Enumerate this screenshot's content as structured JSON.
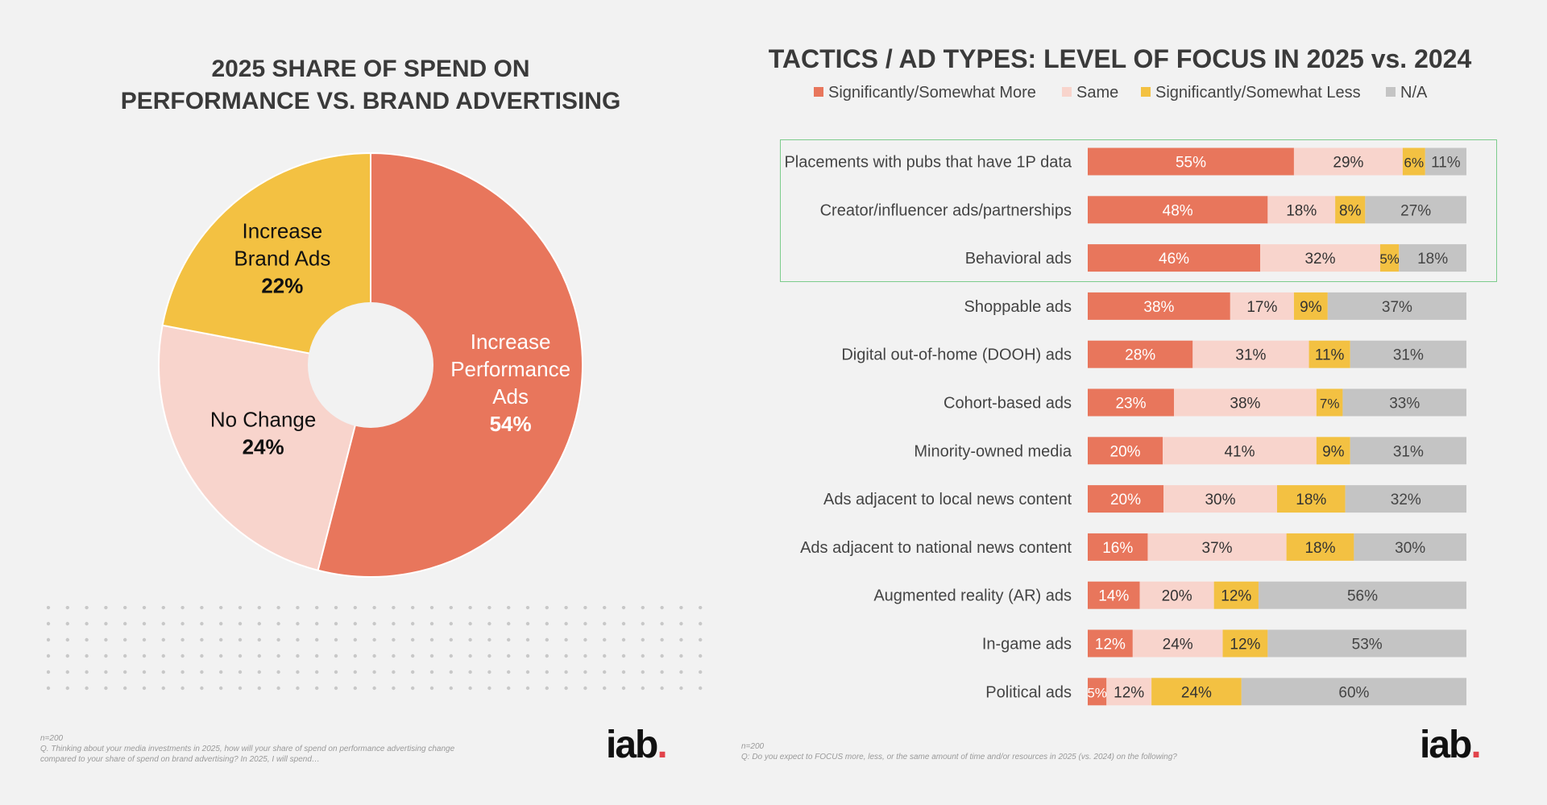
{
  "colors": {
    "more": "#e8765c",
    "same": "#f8d4cc",
    "less": "#f3c142",
    "na": "#c4c4c4",
    "pie_performance": "#e8765c",
    "pie_no_change": "#f8d4cc",
    "pie_brand": "#f3c142",
    "highlight": "#7dcc8c"
  },
  "left": {
    "title_line1": "2025 SHARE OF SPEND ON",
    "title_line2": "PERFORMANCE VS. BRAND ADVERTISING",
    "footnote_n": "n=200",
    "footnote_q": "Q. Thinking about your media investments in 2025, how will your share of spend on performance advertising change compared to your share of spend on brand advertising? In 2025, I will spend…",
    "logo": "iab",
    "logo_dot": "."
  },
  "right": {
    "title": "TACTICS / AD TYPES: LEVEL OF FOCUS IN 2025 vs. 2024",
    "footnote_n": "n=200",
    "footnote_q": "Q: Do you expect to FOCUS more, less, or the same amount of time and/or resources in 2025 (vs. 2024) on the following?",
    "logo": "iab",
    "logo_dot": "."
  },
  "chart_data": [
    {
      "type": "pie",
      "title": "2025 SHARE OF SPEND ON PERFORMANCE VS. BRAND ADVERTISING",
      "slices": [
        {
          "label_lines": [
            "Increase",
            "Performance",
            "Ads"
          ],
          "value": 54,
          "value_label": "54%",
          "color": "#e8765c",
          "text_color": "#ffffff"
        },
        {
          "label_lines": [
            "No Change"
          ],
          "value": 24,
          "value_label": "24%",
          "color": "#f8d4cc",
          "text_color": "#111111"
        },
        {
          "label_lines": [
            "Increase",
            "Brand Ads"
          ],
          "value": 22,
          "value_label": "22%",
          "color": "#f3c142",
          "text_color": "#111111"
        }
      ]
    },
    {
      "type": "bar",
      "orientation": "horizontal",
      "stacked": true,
      "title": "TACTICS / AD TYPES: LEVEL OF FOCUS IN 2025 vs. 2024",
      "legend": [
        "Significantly/Somewhat More",
        "Same",
        "Significantly/Somewhat Less",
        "N/A"
      ],
      "legend_position": "top",
      "highlighted_categories": [
        "Placements with pubs that have 1P data",
        "Creator/influencer ads/partnerships",
        "Behavioral ads"
      ],
      "categories": [
        "Placements with pubs that have 1P data",
        "Creator/influencer ads/partnerships",
        "Behavioral ads",
        "Shoppable ads",
        "Digital out-of-home (DOOH) ads",
        "Cohort-based ads",
        "Minority-owned media",
        "Ads adjacent to local news content",
        "Ads adjacent to national news content",
        "Augmented reality (AR) ads",
        "In-game ads",
        "Political ads"
      ],
      "series": [
        {
          "name": "Significantly/Somewhat More",
          "values": [
            55,
            48,
            46,
            38,
            28,
            23,
            20,
            20,
            16,
            14,
            12,
            5
          ]
        },
        {
          "name": "Same",
          "values": [
            29,
            18,
            32,
            17,
            31,
            38,
            41,
            30,
            37,
            20,
            24,
            12
          ]
        },
        {
          "name": "Significantly/Somewhat Less",
          "values": [
            6,
            8,
            5,
            9,
            11,
            7,
            9,
            18,
            18,
            12,
            12,
            24
          ]
        },
        {
          "name": "N/A",
          "values": [
            11,
            27,
            18,
            37,
            31,
            33,
            31,
            32,
            30,
            56,
            53,
            60
          ]
        }
      ],
      "value_suffix": "%"
    }
  ]
}
